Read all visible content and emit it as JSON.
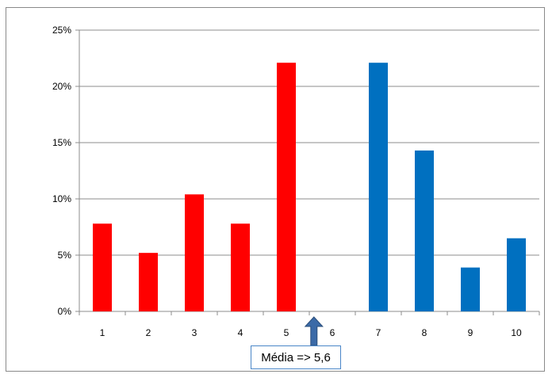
{
  "chart_data": {
    "type": "bar",
    "title": "",
    "xlabel": "",
    "ylabel": "",
    "categories": [
      "1",
      "2",
      "3",
      "4",
      "5",
      "6",
      "7",
      "8",
      "9",
      "10"
    ],
    "values": [
      7.8,
      5.2,
      10.4,
      7.8,
      22.1,
      0,
      22.1,
      14.3,
      3.9,
      6.5
    ],
    "value_unit": "%",
    "bar_colors": [
      "#ff0000",
      "#ff0000",
      "#ff0000",
      "#ff0000",
      "#ff0000",
      "#ff0000",
      "#0070c0",
      "#0070c0",
      "#0070c0",
      "#0070c0"
    ],
    "ylim": [
      0,
      25
    ],
    "yticks": [
      0,
      5,
      10,
      15,
      20,
      25
    ],
    "ytick_labels": [
      "0%",
      "5%",
      "10%",
      "15%",
      "20%",
      "25%"
    ],
    "grid": true,
    "legend": "none",
    "annotation": {
      "text": "Média => 5,6",
      "x_value": 5.6,
      "arrow": "up",
      "arrow_color": "#3b6aa7"
    }
  }
}
